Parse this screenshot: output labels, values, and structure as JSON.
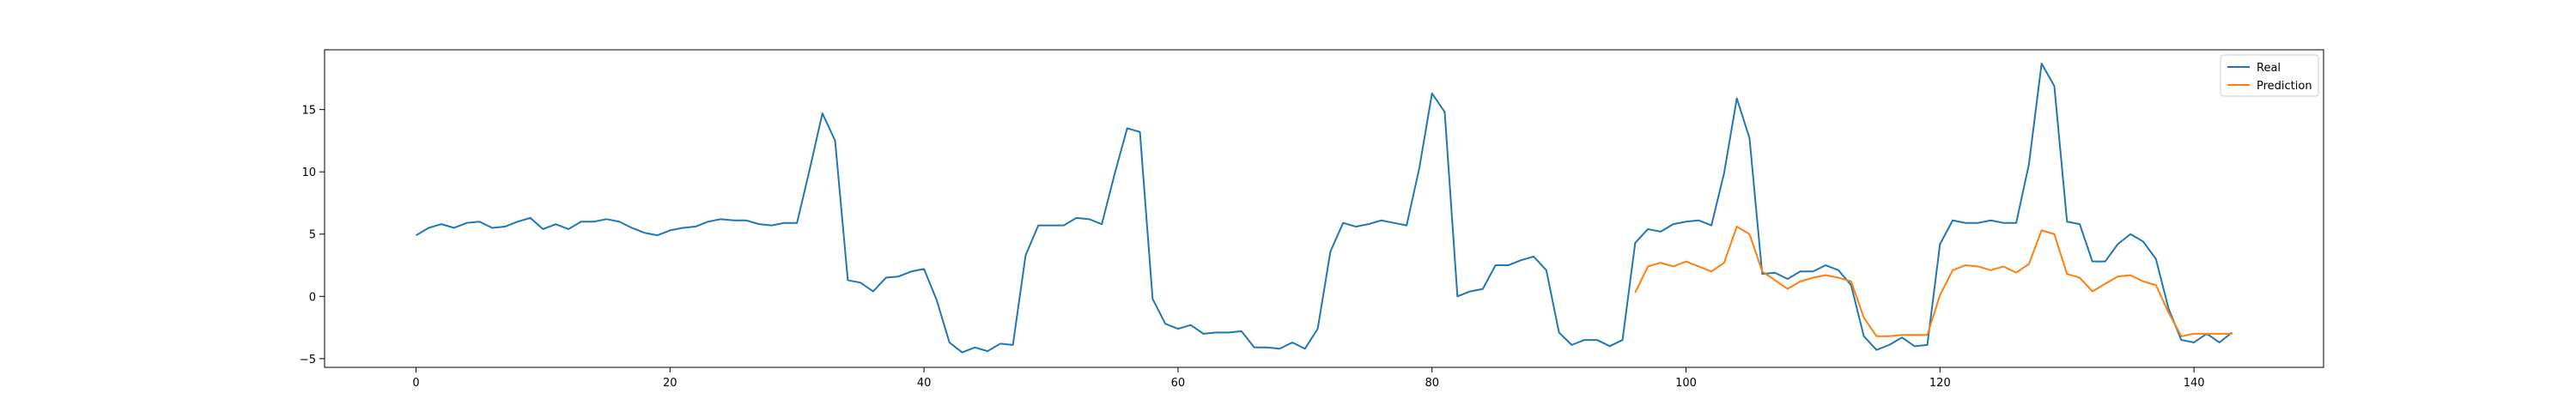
{
  "chart_data": {
    "type": "line",
    "title": "",
    "xlabel": "",
    "ylabel": "",
    "xlim": [
      -7.2,
      150.2
    ],
    "ylim": [
      -5.7,
      19.8
    ],
    "xticks": [
      0,
      20,
      40,
      60,
      80,
      100,
      120,
      140
    ],
    "yticks": [
      -5,
      0,
      5,
      10,
      15
    ],
    "grid": false,
    "legend_position": "top-right",
    "series": [
      {
        "name": "Real",
        "color": "#1f77b4",
        "x_start": 0,
        "values": [
          4.9,
          5.5,
          5.8,
          5.5,
          5.9,
          6.0,
          5.5,
          5.6,
          6.0,
          6.3,
          5.4,
          5.8,
          5.4,
          6.0,
          6.0,
          6.2,
          6.0,
          5.5,
          5.1,
          4.9,
          5.3,
          5.5,
          5.6,
          6.0,
          6.2,
          6.1,
          6.1,
          5.8,
          5.7,
          5.9,
          5.9,
          10.2,
          14.7,
          12.5,
          1.3,
          1.1,
          0.4,
          1.5,
          1.6,
          2.0,
          2.2,
          -0.3,
          -3.7,
          -4.5,
          -4.1,
          -4.4,
          -3.8,
          -3.9,
          3.3,
          5.7,
          5.7,
          5.7,
          6.3,
          6.2,
          5.8,
          9.8,
          13.5,
          13.2,
          -0.2,
          -2.2,
          -2.6,
          -2.3,
          -3.0,
          -2.9,
          -2.9,
          -2.8,
          -4.1,
          -4.1,
          -4.2,
          -3.7,
          -4.2,
          -2.6,
          3.6,
          5.9,
          5.6,
          5.8,
          6.1,
          5.9,
          5.7,
          10.3,
          16.3,
          14.8,
          0.0,
          0.4,
          0.6,
          2.5,
          2.5,
          2.9,
          3.2,
          2.1,
          -2.9,
          -3.9,
          -3.5,
          -3.5,
          -4.0,
          -3.5,
          4.3,
          5.4,
          5.2,
          5.8,
          6.0,
          6.1,
          5.7,
          9.9,
          15.9,
          12.7,
          1.8,
          1.9,
          1.4,
          2.0,
          2.0,
          2.5,
          2.1,
          0.9,
          -3.2,
          -4.3,
          -3.9,
          -3.3,
          -4.0,
          -3.9,
          4.2,
          6.1,
          5.9,
          5.9,
          6.1,
          5.9,
          5.9,
          10.6,
          18.7,
          16.9,
          6.0,
          5.8,
          2.8,
          2.8,
          4.2,
          5.0,
          4.4,
          3.0,
          -1.0,
          -3.5,
          -3.7,
          -3.0,
          -3.7,
          -2.9
        ]
      },
      {
        "name": "Prediction",
        "color": "#ff7f0e",
        "x_start": 96,
        "values": [
          0.3,
          2.4,
          2.7,
          2.4,
          2.8,
          2.4,
          2.0,
          2.7,
          5.6,
          5.0,
          2.0,
          1.3,
          0.6,
          1.2,
          1.5,
          1.7,
          1.5,
          1.2,
          -1.7,
          -3.2,
          -3.2,
          -3.1,
          -3.1,
          -3.1,
          0.1,
          2.1,
          2.5,
          2.4,
          2.1,
          2.4,
          1.9,
          2.6,
          5.3,
          5.0,
          1.8,
          1.5,
          0.4,
          1.0,
          1.6,
          1.7,
          1.2,
          0.9,
          -1.3,
          -3.2,
          -3.0,
          -3.0,
          -3.0,
          -3.0
        ]
      }
    ]
  }
}
